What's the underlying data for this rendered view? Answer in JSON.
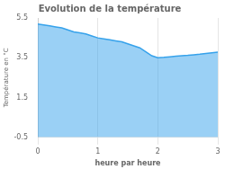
{
  "chart_data": {
    "type": "area",
    "title": "Evolution de la température",
    "xlabel": "heure par heure",
    "ylabel": "Température en °C",
    "x": [
      0,
      0.1,
      0.2,
      0.3,
      0.4,
      0.5,
      0.6,
      0.7,
      0.8,
      0.9,
      1.0,
      1.1,
      1.2,
      1.3,
      1.4,
      1.5,
      1.6,
      1.7,
      1.8,
      1.9,
      2.0,
      2.1,
      2.2,
      2.3,
      2.4,
      2.5,
      2.6,
      2.7,
      2.8,
      2.9,
      3.0
    ],
    "values": [
      5.2,
      5.15,
      5.1,
      5.05,
      5.0,
      4.9,
      4.8,
      4.75,
      4.7,
      4.6,
      4.5,
      4.45,
      4.4,
      4.35,
      4.3,
      4.2,
      4.1,
      4.0,
      3.8,
      3.6,
      3.5,
      3.52,
      3.55,
      3.58,
      3.6,
      3.62,
      3.65,
      3.68,
      3.72,
      3.75,
      3.78
    ],
    "xlim": [
      0,
      3.0
    ],
    "ylim": [
      -0.5,
      5.5
    ],
    "xticks": [
      0,
      1,
      2,
      3
    ],
    "yticks": [
      -0.5,
      1.5,
      3.5,
      5.5
    ],
    "grid": "x"
  }
}
